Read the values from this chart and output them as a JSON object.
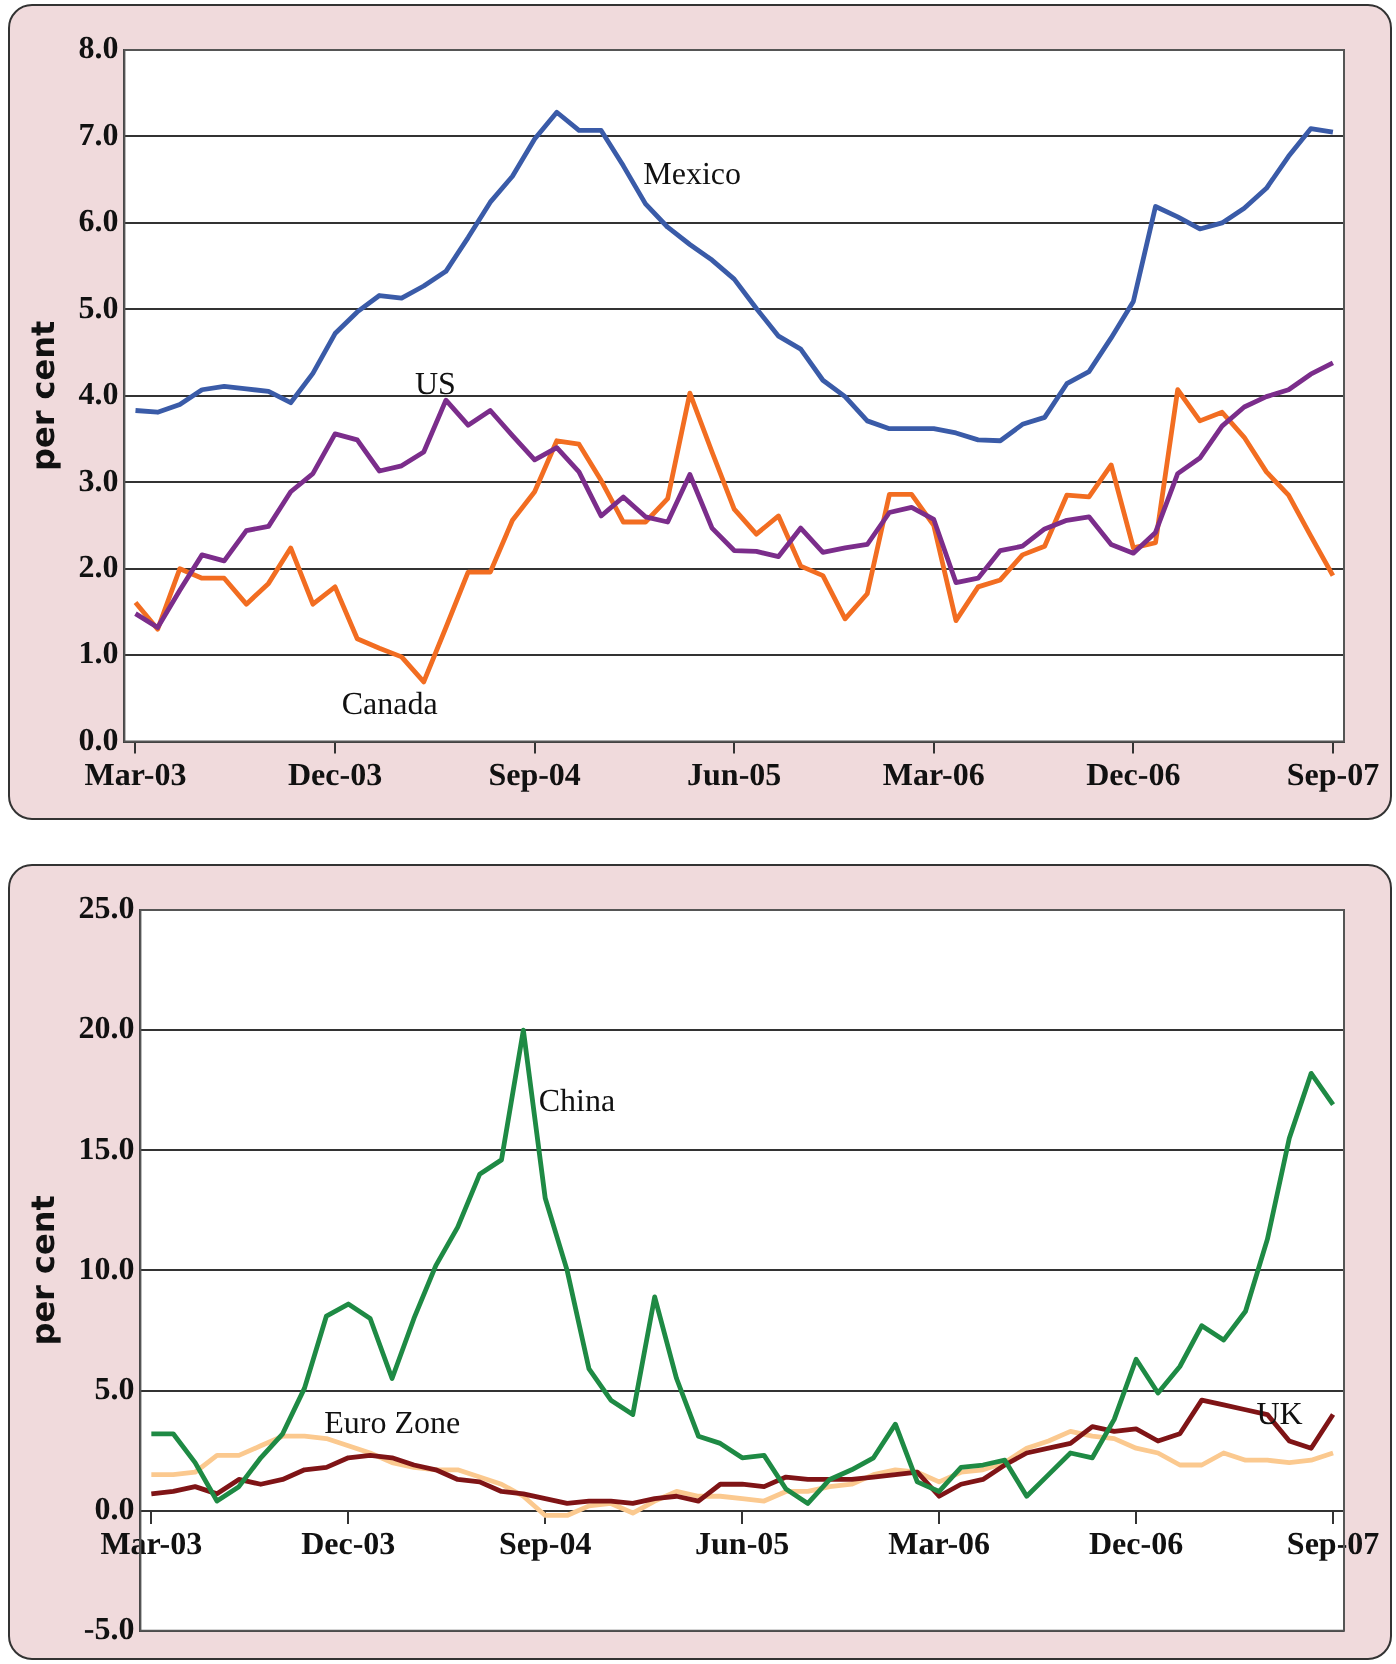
{
  "chart_data": [
    {
      "type": "line",
      "ylabel": "per cent",
      "categories": [
        "Mar-03",
        null,
        null,
        null,
        null,
        null,
        null,
        null,
        null,
        "Dec-03",
        null,
        null,
        null,
        null,
        null,
        null,
        null,
        null,
        "Sep-04",
        null,
        null,
        null,
        null,
        null,
        null,
        null,
        null,
        "Jun-05",
        null,
        null,
        null,
        null,
        null,
        null,
        null,
        null,
        "Mar-06",
        null,
        null,
        null,
        null,
        null,
        null,
        null,
        null,
        "Dec-06",
        null,
        null,
        null,
        null,
        null,
        null,
        null,
        null,
        "Sep-07"
      ],
      "series": [
        {
          "name": "Mexico",
          "color": "#3a5ba8",
          "values": [
            3.83,
            3.81,
            3.9,
            4.07,
            4.11,
            4.08,
            4.05,
            3.92,
            4.26,
            4.72,
            4.97,
            5.16,
            5.13,
            5.27,
            5.44,
            5.83,
            6.24,
            6.54,
            6.97,
            7.28,
            7.07,
            7.07,
            6.66,
            6.22,
            5.95,
            5.75,
            5.57,
            5.35,
            5.01,
            4.69,
            4.54,
            4.18,
            3.99,
            3.71,
            3.62,
            3.62,
            3.62,
            3.57,
            3.49,
            3.48,
            3.67,
            3.75,
            4.14,
            4.28,
            4.67,
            5.09,
            6.19,
            6.07,
            5.93,
            6.0,
            6.17,
            6.4,
            6.77,
            7.09,
            7.05
          ]
        },
        {
          "name": "US",
          "color": "#7b2d8b",
          "values": [
            1.48,
            1.32,
            1.75,
            2.16,
            2.09,
            2.44,
            2.49,
            2.89,
            3.1,
            3.56,
            3.49,
            3.13,
            3.19,
            3.35,
            3.95,
            3.66,
            3.83,
            3.54,
            3.26,
            3.4,
            3.12,
            2.61,
            2.83,
            2.6,
            2.54,
            3.09,
            2.47,
            2.21,
            2.2,
            2.14,
            2.47,
            2.19,
            2.24,
            2.28,
            2.65,
            2.71,
            2.57,
            1.84,
            1.89,
            2.21,
            2.26,
            2.46,
            2.56,
            2.6,
            2.28,
            2.18,
            2.42,
            3.1,
            3.28,
            3.65,
            3.87,
            3.99,
            4.07,
            4.25,
            4.38
          ]
        },
        {
          "name": "Canada",
          "color": "#f26d21",
          "values": [
            1.61,
            1.3,
            2.0,
            1.89,
            1.89,
            1.59,
            1.83,
            2.24,
            1.59,
            1.79,
            1.19,
            1.08,
            0.98,
            0.69,
            1.32,
            1.96,
            1.96,
            2.56,
            2.89,
            3.48,
            3.44,
            3.02,
            2.54,
            2.54,
            2.81,
            4.03,
            3.35,
            2.69,
            2.4,
            2.61,
            2.03,
            1.92,
            1.42,
            1.71,
            2.86,
            2.86,
            2.5,
            1.4,
            1.79,
            1.87,
            2.16,
            2.26,
            2.85,
            2.83,
            3.2,
            2.24,
            2.3,
            4.07,
            3.71,
            3.81,
            3.52,
            3.12,
            2.85,
            2.38,
            1.92
          ]
        }
      ],
      "ylim": [
        0,
        8
      ],
      "yticks": [
        {
          "value": 0,
          "label": "0.0"
        },
        {
          "value": 1,
          "label": "1.0"
        },
        {
          "value": 2,
          "label": "2.0"
        },
        {
          "value": 3,
          "label": "3.0"
        },
        {
          "value": 4,
          "label": "4.0"
        },
        {
          "value": 5,
          "label": "5.0"
        },
        {
          "value": 6,
          "label": "6.0"
        },
        {
          "value": 7,
          "label": "7.0"
        },
        {
          "value": 8,
          "label": "8.0"
        }
      ],
      "grid": "y",
      "marker": "none",
      "legend": false
    },
    {
      "type": "line",
      "ylabel": "per cent",
      "categories": [
        "Mar-03",
        null,
        null,
        null,
        null,
        null,
        null,
        null,
        null,
        "Dec-03",
        null,
        null,
        null,
        null,
        null,
        null,
        null,
        null,
        "Sep-04",
        null,
        null,
        null,
        null,
        null,
        null,
        null,
        null,
        "Jun-05",
        null,
        null,
        null,
        null,
        null,
        null,
        null,
        null,
        "Mar-06",
        null,
        null,
        null,
        null,
        null,
        null,
        null,
        null,
        "Dec-06",
        null,
        null,
        null,
        null,
        null,
        null,
        null,
        null,
        "Sep-07"
      ],
      "series": [
        {
          "name": "China",
          "color": "#1e8a44",
          "values": [
            3.2,
            3.2,
            2.0,
            0.4,
            1.0,
            2.2,
            3.2,
            5.1,
            8.1,
            8.6,
            8.0,
            5.5,
            8.0,
            10.2,
            11.8,
            14.0,
            14.6,
            20.0,
            13.0,
            10.0,
            5.9,
            4.6,
            4.0,
            8.9,
            5.5,
            3.1,
            2.8,
            2.2,
            2.3,
            0.9,
            0.3,
            1.3,
            1.7,
            2.2,
            3.6,
            1.2,
            0.8,
            1.8,
            1.9,
            2.1,
            0.6,
            1.5,
            2.4,
            2.2,
            3.8,
            6.3,
            4.9,
            6.0,
            7.7,
            7.1,
            8.3,
            11.3,
            15.5,
            18.2,
            16.9
          ]
        },
        {
          "name": "UK",
          "color": "#7f1416",
          "values": [
            0.7,
            0.8,
            1.0,
            0.7,
            1.3,
            1.1,
            1.3,
            1.7,
            1.8,
            2.2,
            2.3,
            2.2,
            1.9,
            1.7,
            1.3,
            1.2,
            0.8,
            0.7,
            0.5,
            0.3,
            0.4,
            0.4,
            0.3,
            0.5,
            0.6,
            0.4,
            1.1,
            1.1,
            1.0,
            1.4,
            1.3,
            1.3,
            1.3,
            1.4,
            1.5,
            1.6,
            0.6,
            1.1,
            1.3,
            1.9,
            2.4,
            2.6,
            2.8,
            3.5,
            3.3,
            3.4,
            2.9,
            3.2,
            4.6,
            4.4,
            4.2,
            4.0,
            2.9,
            2.6,
            4.0
          ]
        },
        {
          "name": "Euro Zone",
          "color": "#fbc98f",
          "values": [
            1.5,
            1.5,
            1.6,
            2.3,
            2.3,
            2.7,
            3.1,
            3.1,
            3.0,
            2.7,
            2.4,
            2.0,
            1.8,
            1.7,
            1.7,
            1.4,
            1.1,
            0.6,
            -0.2,
            -0.2,
            0.2,
            0.3,
            -0.1,
            0.4,
            0.8,
            0.6,
            0.6,
            0.5,
            0.4,
            0.8,
            0.8,
            1.0,
            1.1,
            1.5,
            1.7,
            1.6,
            1.2,
            1.6,
            1.7,
            2.0,
            2.6,
            2.9,
            3.3,
            3.1,
            3.0,
            2.6,
            2.4,
            1.9,
            1.9,
            2.4,
            2.1,
            2.1,
            2.0,
            2.1,
            2.4
          ]
        }
      ],
      "ylim": [
        -5,
        25
      ],
      "yticks": [
        {
          "value": -5,
          "label": "-5.0"
        },
        {
          "value": 0,
          "label": "0.0"
        },
        {
          "value": 5,
          "label": "5.0"
        },
        {
          "value": 10,
          "label": "10.0"
        },
        {
          "value": 15,
          "label": "15.0"
        },
        {
          "value": 20,
          "label": "20.0"
        },
        {
          "value": 25,
          "label": "25.0"
        }
      ],
      "grid": "y",
      "marker": "none",
      "legend": false
    }
  ]
}
